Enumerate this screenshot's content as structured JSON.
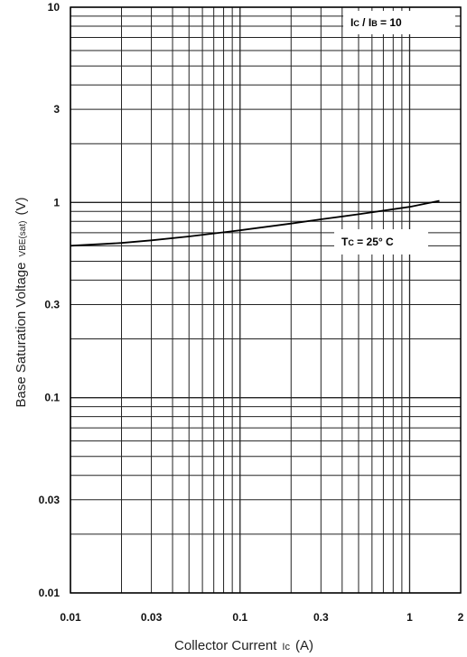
{
  "chart_data": {
    "type": "line",
    "title": "",
    "xlabel": "Collector Current",
    "xlabel_symbol": "Ic",
    "xlabel_unit": "(A)",
    "ylabel": "Base Saturation Voltage",
    "ylabel_symbol": "VBE(sat)",
    "ylabel_unit": "(V)",
    "x_scale": "log",
    "y_scale": "log",
    "xlim": [
      0.01,
      2
    ],
    "ylim": [
      0.01,
      10
    ],
    "grid": true,
    "x_ticks": [
      {
        "value": 0.01,
        "label": "0.01"
      },
      {
        "value": 0.03,
        "label": "0.03"
      },
      {
        "value": 0.1,
        "label": "0.1"
      },
      {
        "value": 0.3,
        "label": "0.3"
      },
      {
        "value": 1,
        "label": "1"
      },
      {
        "value": 2,
        "label": "2"
      }
    ],
    "y_ticks": [
      {
        "value": 0.01,
        "label": "0.01"
      },
      {
        "value": 0.03,
        "label": "0.03"
      },
      {
        "value": 0.1,
        "label": "0.1"
      },
      {
        "value": 0.3,
        "label": "0.3"
      },
      {
        "value": 1,
        "label": "1"
      },
      {
        "value": 3,
        "label": "3"
      },
      {
        "value": 10,
        "label": "10"
      }
    ],
    "series": [
      {
        "x": [
          0.01,
          0.02,
          0.03,
          0.05,
          0.1,
          0.2,
          0.3,
          0.5,
          1,
          1.5
        ],
        "y": [
          0.6,
          0.62,
          0.64,
          0.67,
          0.72,
          0.78,
          0.82,
          0.87,
          0.95,
          1.02
        ]
      }
    ],
    "annotations": [
      {
        "main": "I",
        "sub": "C",
        "mid": " / I",
        "sub2": "B",
        "rest": " = 10"
      },
      {
        "main": "T",
        "sub": "C",
        "mid": " = 25° C",
        "sub2": "",
        "rest": ""
      }
    ]
  }
}
